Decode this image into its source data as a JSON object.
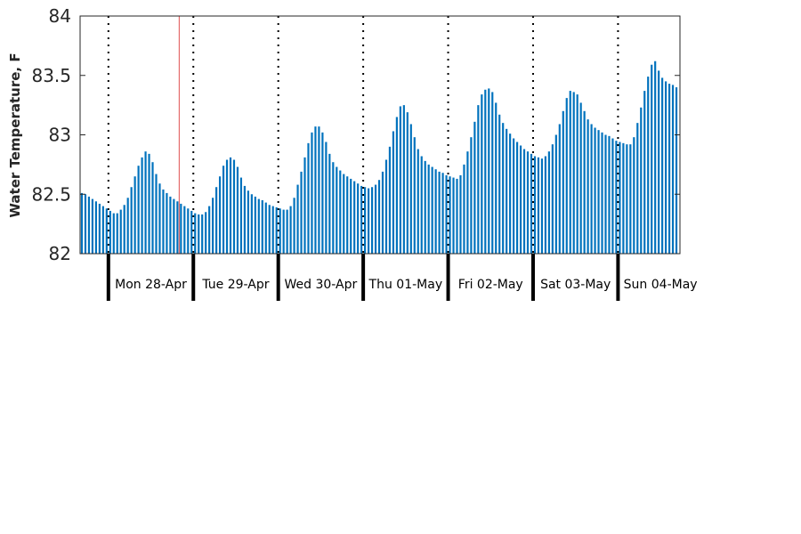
{
  "chart_data": {
    "type": "bar",
    "title": "",
    "xlabel": "",
    "ylabel": "Water Temperature, F",
    "ylim": [
      82,
      84
    ],
    "yticks": [
      {
        "value": 82,
        "label": "82"
      },
      {
        "value": 82.5,
        "label": "82.5"
      },
      {
        "value": 83,
        "label": "83"
      },
      {
        "value": 83.5,
        "label": "83.5"
      },
      {
        "value": 84,
        "label": "84"
      }
    ],
    "grid": false,
    "interval_hours": 1,
    "day_labels": [
      "Mon 28-Apr",
      "Tue 29-Apr",
      "Wed 30-Apr",
      "Thu 01-May",
      "Fri 02-May",
      "Sat 03-May",
      "Sun 04-May"
    ],
    "bar_color": "#0072BD",
    "marker_color": "#E05050",
    "divider_color": "#000000",
    "current_time_marker_hour": 28,
    "values": [
      82.51,
      82.5,
      82.48,
      82.46,
      82.44,
      82.42,
      82.4,
      82.38,
      82.36,
      82.34,
      82.34,
      82.37,
      82.41,
      82.47,
      82.56,
      82.65,
      82.74,
      82.81,
      82.86,
      82.84,
      82.77,
      82.67,
      82.59,
      82.54,
      82.51,
      82.48,
      82.46,
      82.44,
      82.42,
      82.4,
      82.38,
      82.36,
      82.34,
      82.33,
      82.33,
      82.35,
      82.4,
      82.47,
      82.56,
      82.65,
      82.74,
      82.79,
      82.81,
      82.79,
      82.73,
      82.64,
      82.57,
      82.53,
      82.5,
      82.48,
      82.46,
      82.45,
      82.43,
      82.41,
      82.4,
      82.39,
      82.38,
      82.37,
      82.37,
      82.4,
      82.47,
      82.58,
      82.69,
      82.81,
      82.93,
      83.02,
      83.07,
      83.07,
      83.02,
      82.94,
      82.84,
      82.77,
      82.73,
      82.7,
      82.67,
      82.65,
      82.63,
      82.61,
      82.59,
      82.57,
      82.56,
      82.55,
      82.56,
      82.58,
      82.62,
      82.69,
      82.79,
      82.9,
      83.03,
      83.15,
      83.24,
      83.25,
      83.19,
      83.09,
      82.98,
      82.88,
      82.82,
      82.78,
      82.75,
      82.73,
      82.71,
      82.69,
      82.68,
      82.66,
      82.65,
      82.64,
      82.63,
      82.66,
      82.75,
      82.86,
      82.98,
      83.11,
      83.25,
      83.34,
      83.38,
      83.39,
      83.36,
      83.27,
      83.17,
      83.1,
      83.05,
      83.01,
      82.97,
      82.94,
      82.91,
      82.88,
      82.86,
      82.84,
      82.82,
      82.81,
      82.8,
      82.82,
      82.86,
      82.92,
      83.0,
      83.09,
      83.2,
      83.31,
      83.37,
      83.36,
      83.34,
      83.27,
      83.2,
      83.13,
      83.09,
      83.06,
      83.04,
      83.02,
      83.0,
      82.99,
      82.97,
      82.95,
      82.94,
      82.93,
      82.92,
      82.92,
      82.98,
      83.1,
      83.23,
      83.37,
      83.49,
      83.59,
      83.62,
      83.54,
      83.48,
      83.45,
      83.43,
      83.42,
      83.4
    ]
  }
}
